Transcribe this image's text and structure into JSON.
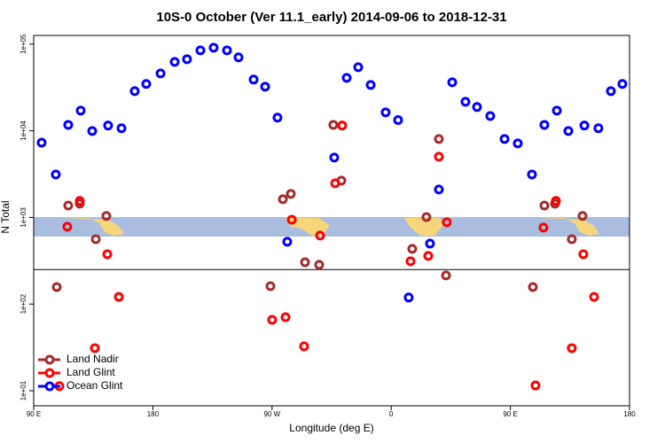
{
  "chart_data": {
    "type": "scatter",
    "title": "10S-0 October (Ver 11.1_early)   2014-09-06 to 2018-12-31",
    "xlabel": "Longitude (deg E)",
    "ylabel": "N Total",
    "log_y": true,
    "legend": "bottomleft",
    "reference_line": 250,
    "xlim": [
      90,
      540
    ],
    "xticks": [
      {
        "value": 90,
        "label": "90 E"
      },
      180,
      {
        "value": 270,
        "label": "90 W"
      },
      {
        "value": 360,
        "label": "0"
      },
      {
        "value": 450,
        "label": "90 E"
      },
      {
        "value": 540,
        "label": "180"
      }
    ],
    "ylim": [
      6.7,
      126000
    ],
    "yticks": [
      {
        "value": 10,
        "label": "1e+01"
      },
      {
        "value": 100,
        "label": "1e+02"
      },
      {
        "value": 1000,
        "label": "1e+03"
      },
      {
        "value": 10000,
        "label": "1e+04"
      },
      {
        "value": 100000,
        "label": "1e+05"
      }
    ],
    "series": [
      {
        "name": "Land Nadir",
        "color": "#a52a2a",
        "x": [
          107.4,
          116.1,
          124.8,
          136.9,
          144.9,
          268.8,
          278.2,
          284.2,
          294.9,
          305.6,
          316.3,
          322.4,
          375.9,
          386.6,
          396.0,
          401.4,
          467.0,
          475.7,
          483.7,
          496.4,
          504.5
        ],
        "values": [
          157,
          1370,
          1440,
          561,
          1040,
          161,
          1620,
          1870,
          304,
          284,
          11700,
          2660,
          434,
          1010,
          8040,
          214,
          157,
          1370,
          1440,
          561,
          1040
        ]
      },
      {
        "name": "Land Glint",
        "color": "#ff0000",
        "x": [
          109.4,
          115.4,
          124.8,
          136.2,
          145.6,
          154.3,
          270.1,
          280.2,
          284.9,
          294.2,
          306.3,
          317.7,
          323.0,
          374.6,
          388.0,
          396.0,
          402.0,
          469.0,
          475.0,
          484.4,
          496.4,
          505.1,
          513.2
        ],
        "values": [
          11.3,
          782,
          1550,
          31,
          376,
          121,
          65.8,
          70.6,
          942,
          32.5,
          617,
          2480,
          11500,
          312,
          359,
          5020,
          879,
          11.5,
          763,
          1550,
          31,
          376,
          121
        ]
      },
      {
        "name": "Ocean Glint",
        "color": "#0000ff",
        "x": [
          96.0,
          106.7,
          116.1,
          125.5,
          134.2,
          146.2,
          156.3,
          166.3,
          175.0,
          185.8,
          196.5,
          205.8,
          215.9,
          225.9,
          236.0,
          244.7,
          256.1,
          264.8,
          274.1,
          281.5,
          317.0,
          326.4,
          335.1,
          344.5,
          355.8,
          365.2,
          373.2,
          389.3,
          396.0,
          406.1,
          416.1,
          424.8,
          434.8,
          445.6,
          455.6,
          466.3,
          475.7,
          485.1,
          493.8,
          505.9,
          516.5,
          525.9,
          534.6
        ],
        "values": [
          7300,
          3130,
          11700,
          17100,
          9930,
          11500,
          10700,
          28700,
          34700,
          45900,
          62400,
          67000,
          84800,
          91000,
          84800,
          70300,
          39000,
          32300,
          14200,
          524,
          4910,
          40800,
          54200,
          33800,
          16300,
          13300,
          119,
          499,
          2100,
          36300,
          21600,
          18800,
          14800,
          8040,
          7150,
          3130,
          11700,
          17100,
          9930,
          11500,
          10700,
          28700,
          34700
        ]
      }
    ]
  }
}
